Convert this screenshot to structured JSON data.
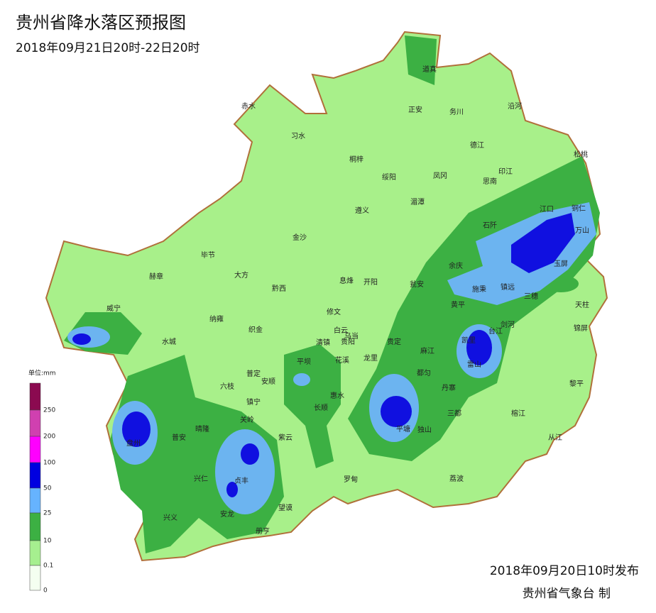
{
  "header": {
    "title": "贵州省降水落区预报图",
    "subtitle": "2018年09月21日20时-22日20时"
  },
  "legend": {
    "unit": "单位:mm",
    "ticks": [
      250,
      200,
      100,
      50,
      25,
      10,
      0.1,
      0
    ]
  },
  "places": [
    "道真",
    "赤水",
    "正安",
    "务川",
    "沿河",
    "习水",
    "德江",
    "松桃",
    "桐梓",
    "绥阳",
    "凤冈",
    "印江",
    "思南",
    "湄潭",
    "遵义",
    "江口",
    "铜仁",
    "石阡",
    "万山",
    "金沙",
    "毕节",
    "余庆",
    "玉屏",
    "大方",
    "赫章",
    "息烽",
    "开阳",
    "黔西",
    "施秉",
    "镇远",
    "瓮安",
    "三穗",
    "天柱",
    "黄平",
    "威宁",
    "修文",
    "纳雍",
    "白云",
    "锦屏",
    "剑河",
    "台江",
    "织金",
    "乌当",
    "清镇",
    "贵阳",
    "贵定",
    "凯里",
    "水城",
    "麻江",
    "花溪",
    "平坝",
    "龙里",
    "雷山",
    "都匀",
    "普定",
    "安顺",
    "六枝",
    "黎平",
    "丹寨",
    "惠水",
    "镇宁",
    "长顺",
    "三都",
    "关岭",
    "平塘",
    "独山",
    "盘州",
    "普安",
    "晴隆",
    "紫云",
    "榕江",
    "从江",
    "兴仁",
    "贞丰",
    "罗甸",
    "荔波",
    "望谟",
    "安龙",
    "兴义",
    "册亨"
  ],
  "footer": {
    "issued": "2018年09月20日10时发布",
    "agency": "贵州省气象台 制"
  }
}
